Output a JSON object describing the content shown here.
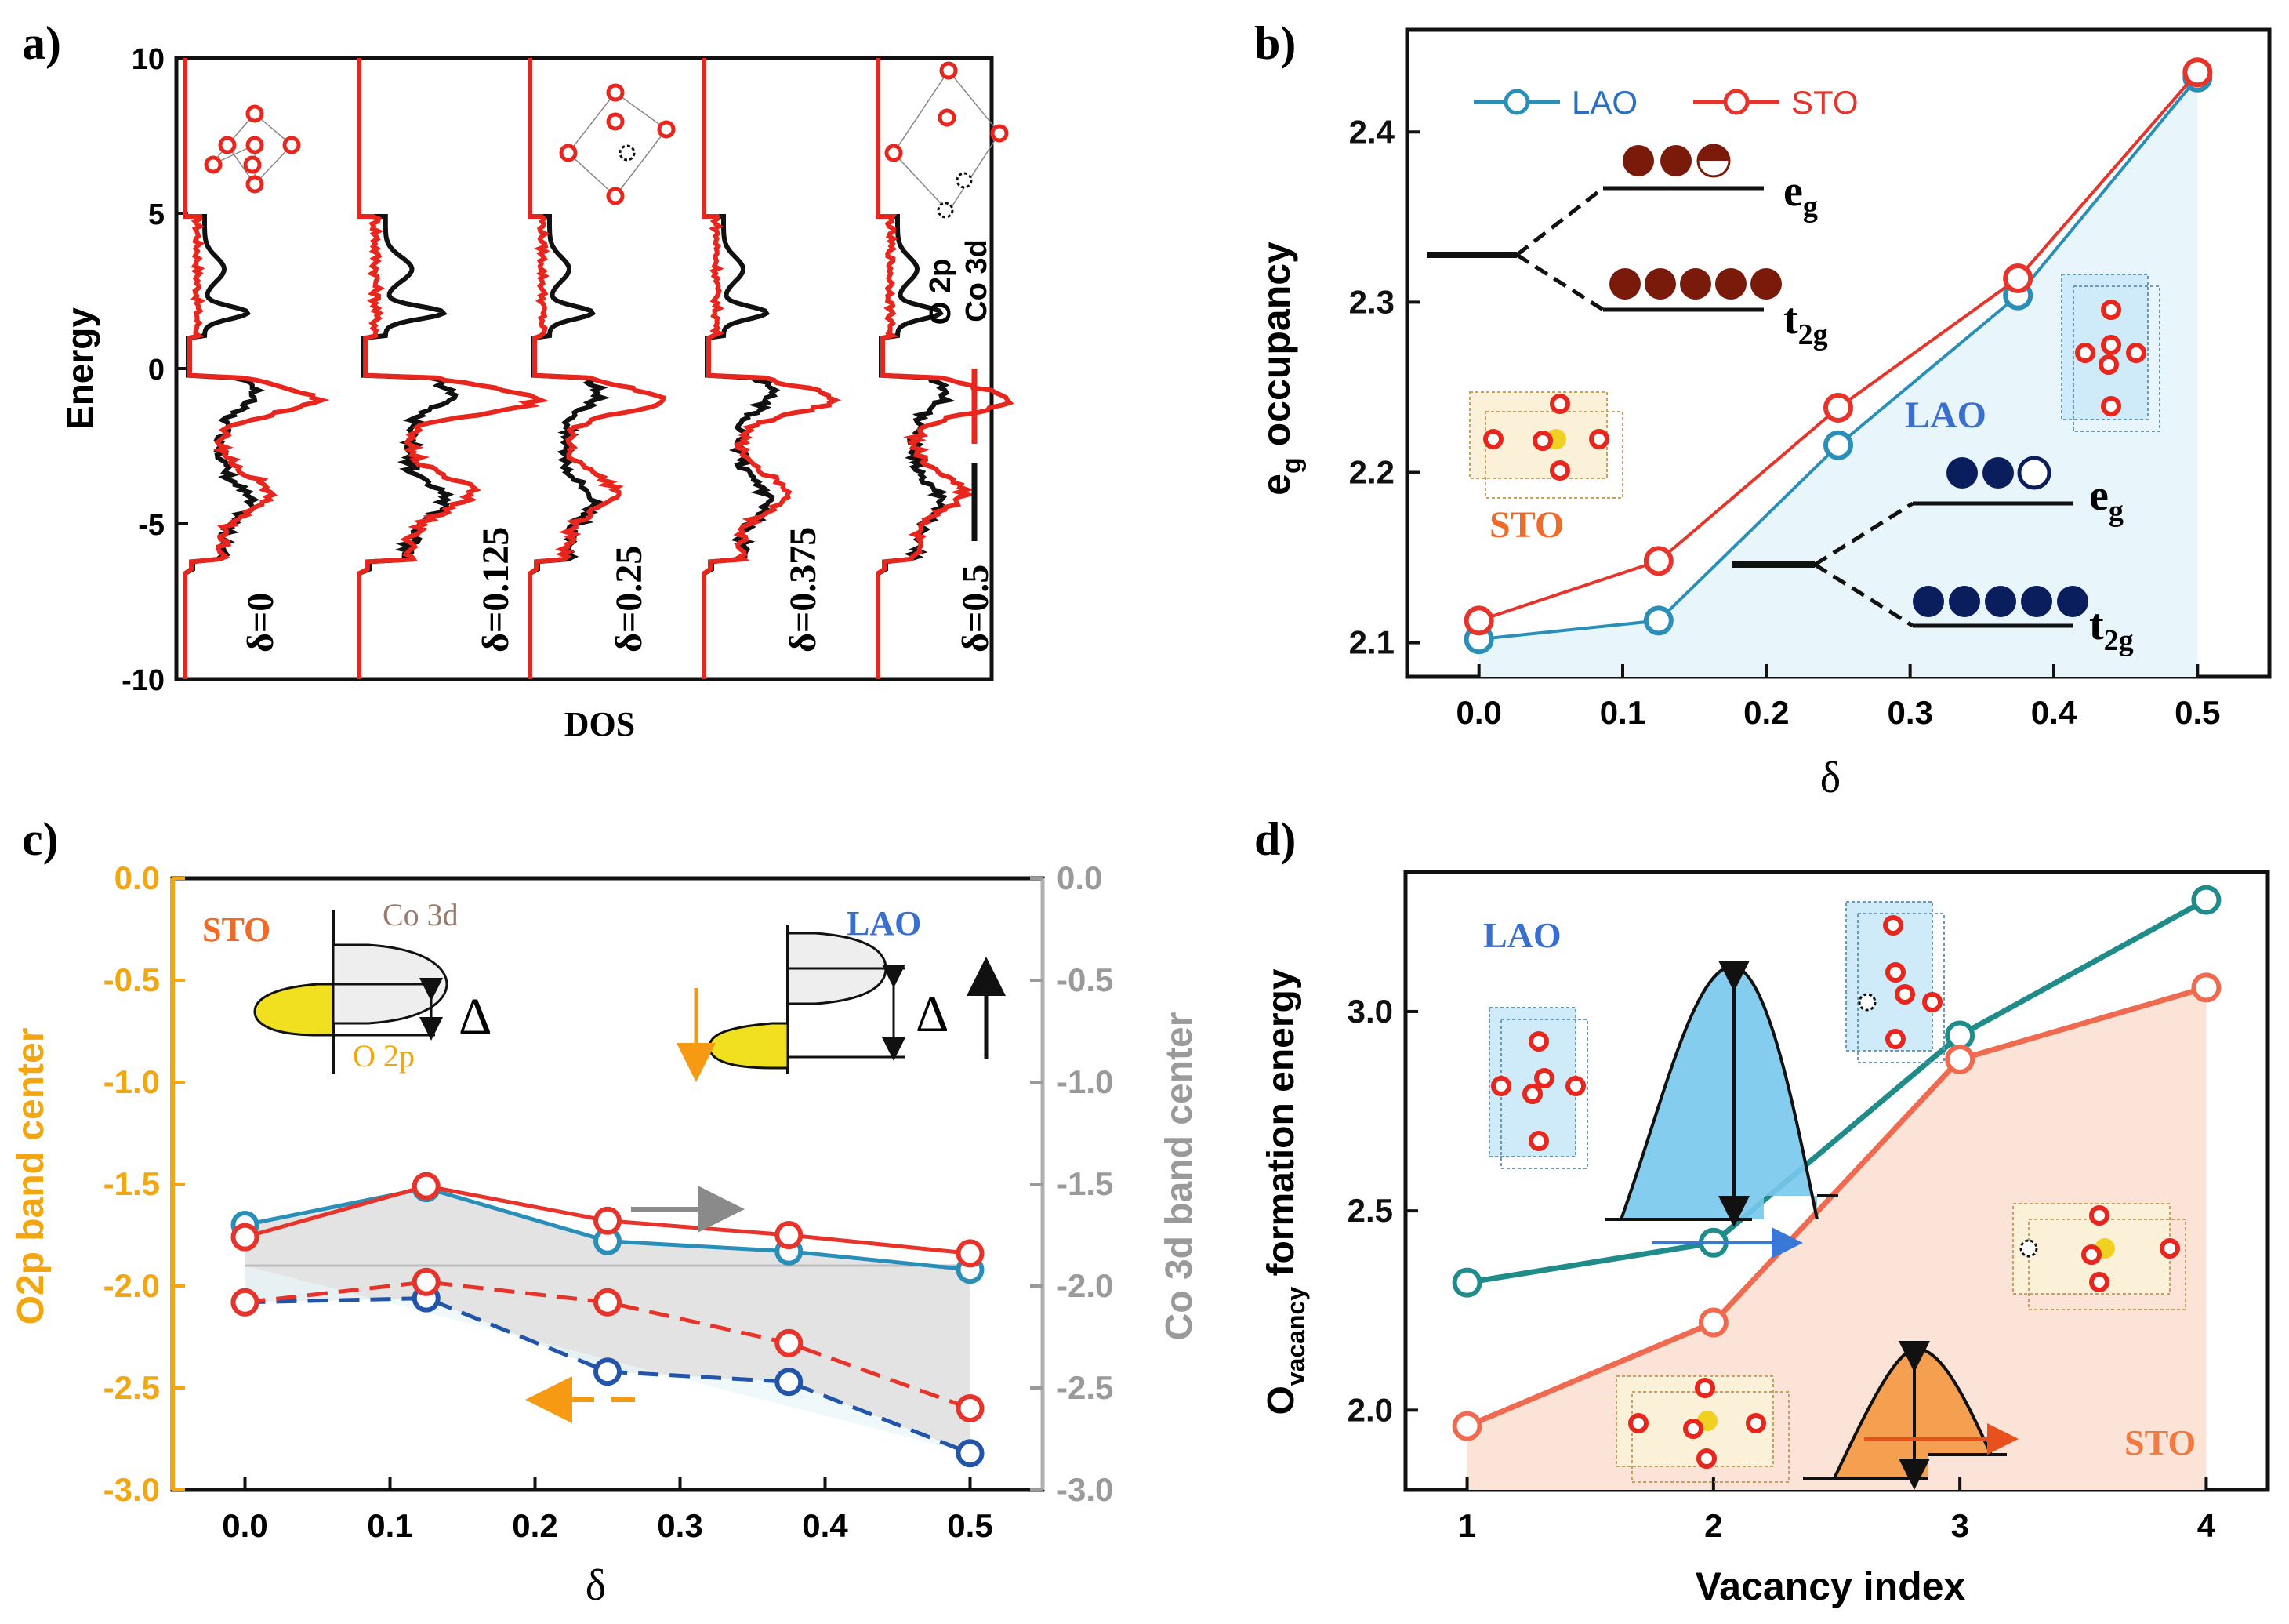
{
  "chart_data": [
    {
      "panel": "a)",
      "type": "line",
      "title": "",
      "xlabel": "DOS",
      "ylabel": "Energy",
      "ylim": [
        -10,
        10
      ],
      "yticks": [
        "10",
        "5",
        "0",
        "-5",
        "-10"
      ],
      "legend": [
        "O 2p",
        "Co 3d"
      ],
      "legend_colors": [
        "#e8261e",
        "#111111"
      ],
      "delta_labels": [
        "δ=0",
        "δ=0.125",
        "δ=0.25",
        "δ=0.375",
        "δ=0.5"
      ]
    },
    {
      "panel": "b)",
      "type": "line",
      "title": "",
      "xlabel": "δ",
      "ylabel": "e",
      "ylabel_sub": "g",
      "ylabel_rest": " occupancy",
      "xlim": [
        -0.05,
        0.55
      ],
      "ylim": [
        2.08,
        2.46
      ],
      "xticks": [
        "0.0",
        "0.1",
        "0.2",
        "0.3",
        "0.4",
        "0.5"
      ],
      "yticks": [
        "2.1",
        "2.2",
        "2.3",
        "2.4"
      ],
      "x": [
        0.0,
        0.125,
        0.25,
        0.375,
        0.5
      ],
      "series": [
        {
          "name": "LAO",
          "color": "#2a8fb8",
          "values": [
            2.102,
            2.113,
            2.216,
            2.304,
            2.432
          ]
        },
        {
          "name": "STO",
          "color": "#e8332a",
          "values": [
            2.113,
            2.148,
            2.238,
            2.314,
            2.435
          ]
        }
      ],
      "annotations": [
        "e",
        "g",
        "t",
        "2g",
        "LAO",
        "STO"
      ]
    },
    {
      "panel": "c)",
      "type": "line",
      "title": "",
      "xlabel": "δ",
      "ylabel_left": "O2p band center",
      "ylabel_right": "Co 3d band center",
      "xlim": [
        -0.05,
        0.55
      ],
      "ylim": [
        -3.0,
        0.0
      ],
      "xticks": [
        "0.0",
        "0.1",
        "0.2",
        "0.3",
        "0.4",
        "0.5"
      ],
      "yticks_left": [
        "0.0",
        "-0.5",
        "-1.0",
        "-1.5",
        "-2.0",
        "-2.5",
        "-3.0"
      ],
      "yticks_right": [
        "0.0",
        "-0.5",
        "-1.0",
        "-1.5",
        "-2.0",
        "-2.5",
        "-3.0"
      ],
      "x": [
        0.0,
        0.125,
        0.25,
        0.375,
        0.5
      ],
      "series": [
        {
          "name": "LAO Co 3d",
          "color": "#2a8fb8",
          "style": "solid",
          "values": [
            -1.7,
            -1.52,
            -1.78,
            -1.83,
            -1.92
          ]
        },
        {
          "name": "STO Co 3d",
          "color": "#e8332a",
          "style": "solid",
          "values": [
            -1.76,
            -1.51,
            -1.68,
            -1.75,
            -1.84
          ]
        },
        {
          "name": "LAO O 2p",
          "color": "#2255aa",
          "style": "dashed",
          "values": [
            -2.08,
            -2.06,
            -2.42,
            -2.47,
            -2.82
          ]
        },
        {
          "name": "STO O 2p",
          "color": "#e8332a",
          "style": "dashed",
          "values": [
            -2.08,
            -1.98,
            -2.08,
            -2.28,
            -2.6
          ]
        }
      ],
      "annotations": [
        "STO",
        "LAO",
        "Co 3d",
        "O 2p",
        "Δ",
        "Δ"
      ]
    },
    {
      "panel": "d)",
      "type": "line",
      "title": "",
      "xlabel": "Vacancy index",
      "ylabel": "O",
      "ylabel_sub": "vacancy",
      "ylabel_rest": " formation energy",
      "xlim": [
        0.75,
        4.25
      ],
      "ylim": [
        1.8,
        3.35
      ],
      "xticks": [
        "1",
        "2",
        "3",
        "4"
      ],
      "yticks": [
        "2.0",
        "2.5",
        "3.0"
      ],
      "x": [
        1,
        2,
        3,
        4
      ],
      "series": [
        {
          "name": "LAO",
          "color": "#1f8c8a",
          "values": [
            2.32,
            2.42,
            2.94,
            3.28
          ]
        },
        {
          "name": "STO",
          "color": "#f06a50",
          "values": [
            1.96,
            2.22,
            2.88,
            3.06
          ]
        }
      ],
      "annotations": [
        "LAO",
        "STO"
      ]
    }
  ]
}
